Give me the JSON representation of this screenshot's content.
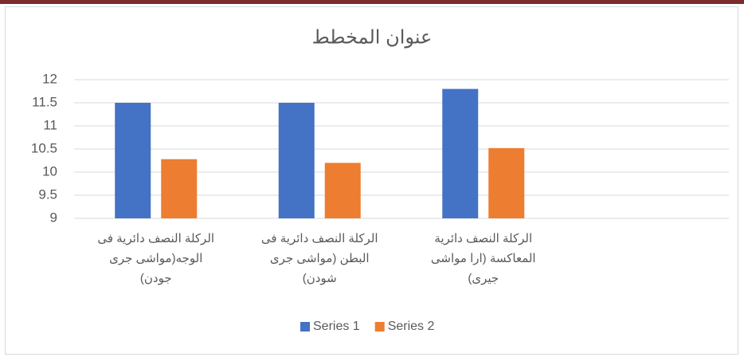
{
  "chart_data": {
    "type": "bar",
    "title": "عنوان المخطط",
    "categories": [
      "الركلة النصف دائرية فى\nالوجه(مواشى جرى\nجودن)",
      "الركلة النصف دائرية فى\nالبطن (مواشى جرى\nشودن)",
      "الركلة النصف دائرية\nالمعاكسة  (ارا مواشى\nجيرى)",
      null
    ],
    "series": [
      {
        "name": "Series 1",
        "color": "#4472c4",
        "values": [
          11.5,
          11.5,
          11.8,
          null
        ]
      },
      {
        "name": "Series 2",
        "color": "#ed7d31",
        "values": [
          10.28,
          10.2,
          10.52,
          null
        ]
      }
    ],
    "ylim": [
      9,
      12
    ],
    "yticks": [
      9,
      9.5,
      10,
      10.5,
      11,
      11.5,
      12
    ],
    "grid": true,
    "legend": "bottom"
  }
}
